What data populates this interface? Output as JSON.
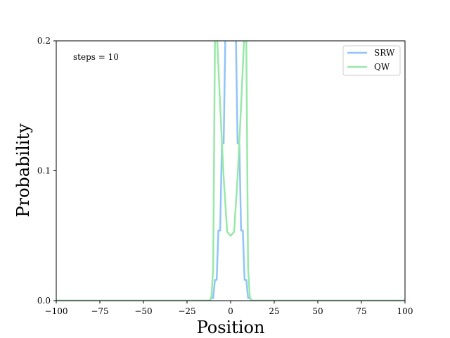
{
  "chart_data": {
    "type": "line",
    "xlabel": "Position",
    "ylabel": "Probability",
    "xlim": [
      -100,
      100
    ],
    "ylim": [
      0,
      0.2
    ],
    "xticks": [
      -100,
      -75,
      -50,
      -25,
      0,
      25,
      50,
      75,
      100
    ],
    "xtick_labels": [
      "−100",
      "−75",
      "−50",
      "−25",
      "0",
      "25",
      "50",
      "75",
      "100"
    ],
    "yticks": [
      0.0,
      0.1,
      0.2
    ],
    "ytick_labels": [
      "0.0",
      "0.1",
      "0.2"
    ],
    "grid": false,
    "legend_position": "top-right",
    "annotation": "steps = 10",
    "series": [
      {
        "name": "SRW",
        "color": "#90c4f8",
        "x": [
          -100,
          -12,
          -11,
          -10,
          -9,
          -8,
          -7,
          -6,
          -5,
          -4,
          -3,
          -2,
          -1,
          0,
          1,
          2,
          3,
          4,
          5,
          6,
          7,
          8,
          9,
          10,
          11,
          12,
          100
        ],
        "y": [
          0,
          0,
          0.002,
          0.002,
          0.016,
          0.016,
          0.054,
          0.054,
          0.121,
          0.121,
          0.205,
          0.205,
          0.246,
          0.246,
          0.246,
          0.205,
          0.205,
          0.121,
          0.121,
          0.054,
          0.054,
          0.016,
          0.016,
          0.002,
          0.002,
          0,
          0
        ]
      },
      {
        "name": "QW",
        "color": "#98e8a8",
        "x": [
          -100,
          -12,
          -11,
          -10,
          -9,
          -8,
          -6,
          -4,
          -2,
          0,
          2,
          4,
          6,
          8,
          9,
          10,
          11,
          12,
          100
        ],
        "y": [
          0,
          0,
          0.003,
          0.025,
          0.2,
          0.21,
          0.15,
          0.095,
          0.053,
          0.05,
          0.053,
          0.095,
          0.15,
          0.21,
          0.2,
          0.025,
          0.003,
          0,
          0
        ]
      }
    ]
  }
}
